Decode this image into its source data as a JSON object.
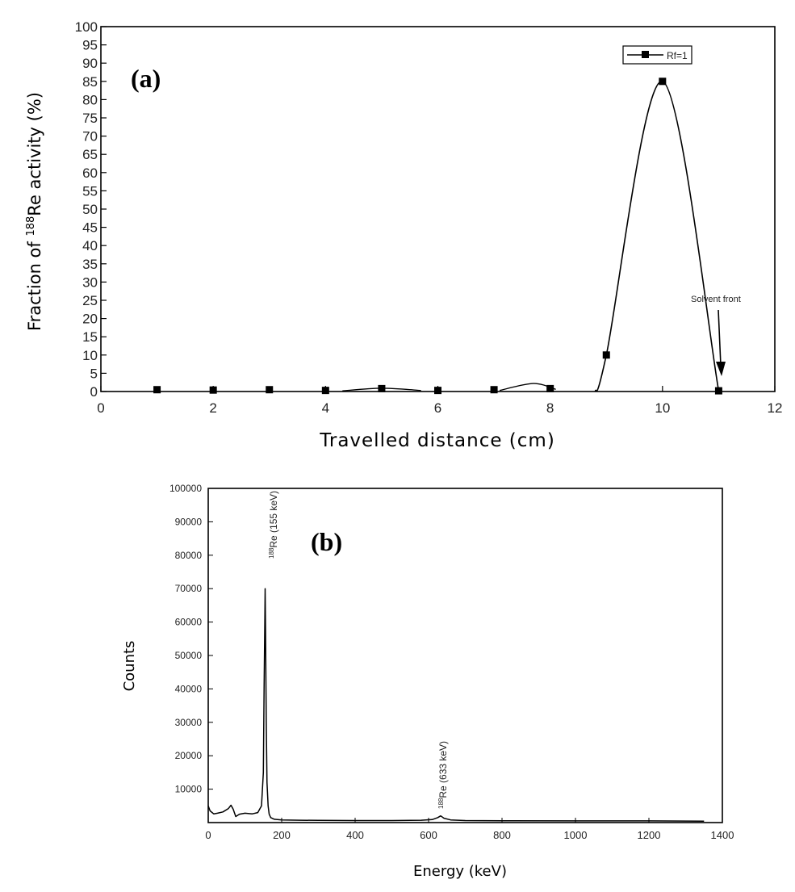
{
  "chart_data": [
    {
      "type": "scatter",
      "panel_label": "(a)",
      "xlabel": "Travelled distance (cm)",
      "ylabel_prefix": "Fraction of ",
      "ylabel_isotope_mass": "188",
      "ylabel_suffix": "Re activity (%)",
      "xlim": [
        0,
        12
      ],
      "ylim": [
        0,
        100
      ],
      "xticks": [
        0,
        2,
        4,
        6,
        8,
        10,
        12
      ],
      "yticks": [
        0,
        5,
        10,
        15,
        20,
        25,
        30,
        35,
        40,
        45,
        50,
        55,
        60,
        65,
        70,
        75,
        80,
        85,
        90,
        95,
        100
      ],
      "grid": false,
      "legend_position": "top-right",
      "series": [
        {
          "name": "Rf=1",
          "x": [
            1,
            2,
            3,
            4,
            5,
            6,
            7,
            8,
            9,
            10,
            11
          ],
          "y": [
            0.5,
            0.4,
            0.5,
            0.3,
            0.8,
            0.3,
            0.5,
            0.8,
            10,
            85,
            0.2
          ]
        }
      ],
      "annotation": {
        "text": "Solvent front",
        "arrow_to": [
          11.1,
          4
        ]
      }
    },
    {
      "type": "line",
      "panel_label": "(b)",
      "xlabel": "Energy (keV)",
      "ylabel": "Counts",
      "xlim": [
        0,
        1400
      ],
      "ylim": [
        0,
        100000
      ],
      "xticks": [
        0,
        200,
        400,
        600,
        800,
        1000,
        1200,
        1400
      ],
      "yticks": [
        10000,
        20000,
        30000,
        40000,
        50000,
        60000,
        70000,
        80000,
        90000,
        100000
      ],
      "grid": false,
      "series": [
        {
          "x": [
            0,
            5,
            15,
            25,
            40,
            55,
            62,
            68,
            75,
            85,
            100,
            120,
            135,
            145,
            150,
            152,
            154,
            155,
            156,
            158,
            160,
            163,
            166,
            170,
            180,
            200,
            250,
            300,
            400,
            500,
            580,
            610,
            625,
            633,
            642,
            660,
            700,
            800,
            1000,
            1200,
            1300,
            1350
          ],
          "y": [
            5000,
            3500,
            2600,
            2800,
            3200,
            4200,
            5200,
            4000,
            1800,
            2500,
            2800,
            2600,
            3000,
            5000,
            15000,
            40000,
            60000,
            70000,
            58000,
            30000,
            12000,
            5000,
            2500,
            1500,
            1000,
            800,
            700,
            650,
            600,
            600,
            700,
            900,
            1500,
            2000,
            1300,
            800,
            600,
            550,
            500,
            500,
            450,
            400
          ]
        }
      ],
      "annotations": [
        {
          "mass": "188",
          "text": "Re (155 keV)",
          "x": 155
        },
        {
          "mass": "188",
          "text": "Re (633 keV)",
          "x": 633
        }
      ]
    }
  ]
}
